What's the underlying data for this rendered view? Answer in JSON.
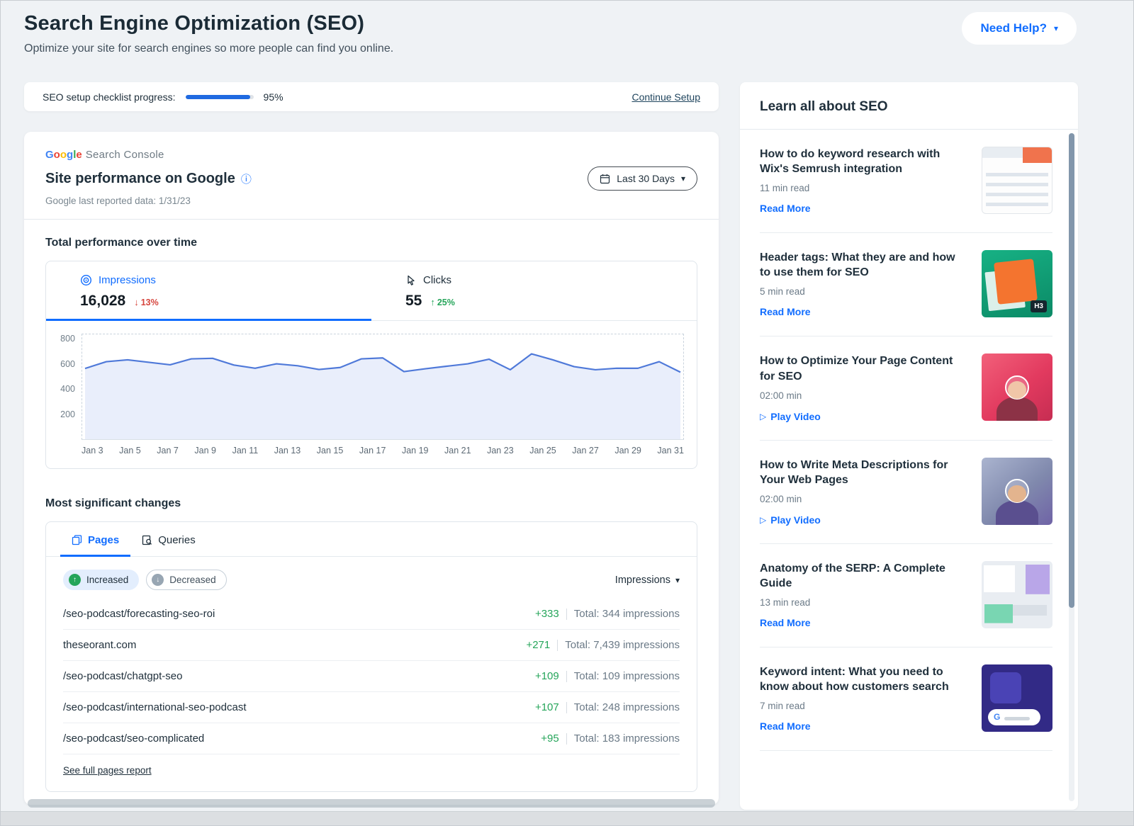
{
  "page": {
    "title": "Search Engine Optimization (SEO)",
    "subtitle": "Optimize your site for search engines so more people can find you online.",
    "help_button": "Need Help?"
  },
  "checklist": {
    "label": "SEO setup checklist progress:",
    "progress_value": 95,
    "progress_percent": "95%",
    "continue_link": "Continue Setup"
  },
  "performance": {
    "logo_brand": "Google",
    "logo_product": "Search Console",
    "google_colors": [
      "#4285F4",
      "#EA4335",
      "#FBBC05",
      "#4285F4",
      "#34A853",
      "#EA4335"
    ],
    "title": "Site performance on Google",
    "last_reported": "Google last reported data: 1/31/23",
    "date_range": "Last 30 Days",
    "section_title": "Total performance over time",
    "impressions": {
      "label": "Impressions",
      "value": "16,028",
      "change": "13%",
      "direction": "down"
    },
    "clicks": {
      "label": "Clicks",
      "value": "55",
      "change": "25%",
      "direction": "up"
    }
  },
  "chart_data": {
    "type": "line",
    "title": "Total performance over time",
    "series": [
      {
        "name": "Impressions",
        "values": [
          570,
          625,
          640,
          620,
          600,
          648,
          652,
          598,
          572,
          608,
          592,
          562,
          578,
          648,
          655,
          545,
          568,
          588,
          608,
          645,
          560,
          688,
          640,
          585,
          560,
          572,
          572,
          625,
          540
        ]
      }
    ],
    "x": [
      "Jan 3",
      "Jan 4",
      "Jan 5",
      "Jan 6",
      "Jan 7",
      "Jan 8",
      "Jan 9",
      "Jan 10",
      "Jan 11",
      "Jan 12",
      "Jan 13",
      "Jan 14",
      "Jan 15",
      "Jan 16",
      "Jan 17",
      "Jan 18",
      "Jan 19",
      "Jan 20",
      "Jan 21",
      "Jan 22",
      "Jan 23",
      "Jan 24",
      "Jan 25",
      "Jan 26",
      "Jan 27",
      "Jan 28",
      "Jan 29",
      "Jan 30",
      "Jan 31"
    ],
    "x_tick_labels": [
      "Jan 3",
      "Jan 5",
      "Jan 7",
      "Jan 9",
      "Jan 11",
      "Jan 13",
      "Jan 15",
      "Jan 17",
      "Jan 19",
      "Jan 21",
      "Jan 23",
      "Jan 25",
      "Jan 27",
      "Jan 29",
      "Jan 31"
    ],
    "ylim": [
      0,
      800
    ],
    "yticks": [
      200,
      400,
      600,
      800
    ],
    "line_color": "#4f79d9",
    "area_color": "#e9eefb",
    "grid": "dashed-frame",
    "legend": "none"
  },
  "changes": {
    "section_title": "Most significant changes",
    "tabs": [
      "Pages",
      "Queries"
    ],
    "filters": [
      "Increased",
      "Decreased"
    ],
    "sort_label": "Impressions",
    "rows": [
      {
        "page": "/seo-podcast/forecasting-seo-roi",
        "change": "+333",
        "total": "Total: 344 impressions"
      },
      {
        "page": "theseorant.com",
        "change": "+271",
        "total": "Total: 7,439 impressions"
      },
      {
        "page": "/seo-podcast/chatgpt-seo",
        "change": "+109",
        "total": "Total: 109 impressions"
      },
      {
        "page": "/seo-podcast/international-seo-podcast",
        "change": "+107",
        "total": "Total: 248 impressions"
      },
      {
        "page": "/seo-podcast/seo-complicated",
        "change": "+95",
        "total": "Total: 183 impressions"
      }
    ],
    "footer_link": "See full pages report"
  },
  "sidebar": {
    "title": "Learn all about SEO",
    "articles": [
      {
        "title": "How to do keyword research with Wix's Semrush integration",
        "meta": "11 min read",
        "action": "Read More",
        "type": "article"
      },
      {
        "title": "Header tags: What they are and how to use them for SEO",
        "meta": "5 min read",
        "action": "Read More",
        "type": "article"
      },
      {
        "title": "How to Optimize Your Page Content for SEO",
        "meta": "02:00 min",
        "action": "Play Video",
        "type": "video"
      },
      {
        "title": "How to Write Meta Descriptions for Your Web Pages",
        "meta": "02:00 min",
        "action": "Play Video",
        "type": "video"
      },
      {
        "title": "Anatomy of the SERP: A Complete Guide",
        "meta": "13 min read",
        "action": "Read More",
        "type": "article"
      },
      {
        "title": "Keyword intent: What you need to know about how customers search",
        "meta": "7 min read",
        "action": "Read More",
        "type": "article"
      }
    ]
  },
  "colors": {
    "accent": "#116DFF",
    "positive": "#25A55A",
    "negative": "#D6453D"
  }
}
